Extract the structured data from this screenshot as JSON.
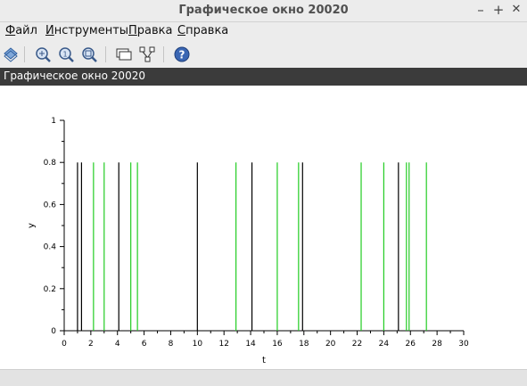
{
  "window": {
    "title": "Графическое окно 20020",
    "minimize": "–",
    "maximize": "+",
    "close": "✕"
  },
  "menu": {
    "items": [
      "Файл",
      "Инструменты",
      "Правка",
      "Справка"
    ]
  },
  "toolbar": {
    "icons": [
      "rotate-icon",
      "zoom-area-icon",
      "zoom-in-icon",
      "zoom-fit-icon",
      "datatip-icon",
      "editor-icon",
      "help-icon"
    ]
  },
  "figure": {
    "name": "Графическое окно 20020"
  },
  "chart_data": {
    "type": "bar",
    "xlabel": "t",
    "ylabel": "y",
    "xlim": [
      0,
      30
    ],
    "ylim": [
      0,
      1
    ],
    "xticks": [
      "0",
      "2",
      "4",
      "6",
      "8",
      "10",
      "12",
      "14",
      "16",
      "18",
      "20",
      "22",
      "24",
      "26",
      "28",
      "30"
    ],
    "yticks": [
      "0",
      "0.2",
      "0.4",
      "0.6",
      "0.8",
      "1"
    ],
    "grid": false,
    "series": [
      {
        "color": "#000000",
        "x": [
          1.0,
          1.3,
          4.1,
          10.0,
          14.1,
          17.9,
          25.1
        ],
        "y": [
          0.8,
          0.8,
          0.8,
          0.8,
          0.8,
          0.8,
          0.8
        ]
      },
      {
        "color": "#22cc22",
        "x": [
          2.2,
          3.0,
          5.0,
          5.5,
          12.9,
          16.0,
          17.6,
          22.3,
          24.0,
          25.7,
          25.9,
          27.2
        ],
        "y": [
          0.8,
          0.8,
          0.8,
          0.8,
          0.8,
          0.8,
          0.8,
          0.8,
          0.8,
          0.8,
          0.8,
          0.8
        ]
      }
    ]
  }
}
